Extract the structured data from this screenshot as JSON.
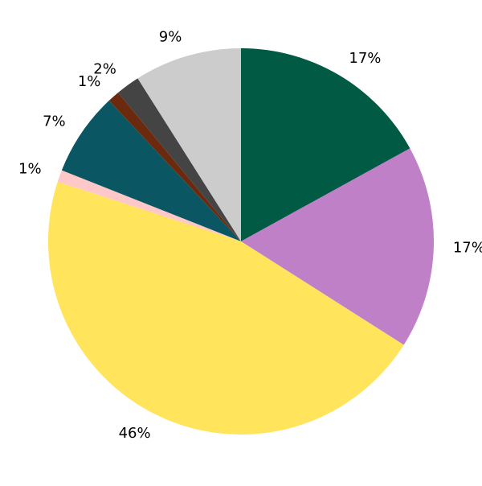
{
  "chart_data": {
    "type": "pie",
    "values": [
      17,
      17,
      46,
      1,
      7,
      1,
      2,
      9
    ],
    "value_labels": [
      "17%",
      "17%",
      "46%",
      "1%",
      "7%",
      "1%",
      "2%",
      "9%"
    ],
    "colors": [
      "#005a44",
      "#bf80c8",
      "#ffe45c",
      "#ffc8c8",
      "#0a5662",
      "#6b2a0e",
      "#444444",
      "#cccccc"
    ]
  }
}
